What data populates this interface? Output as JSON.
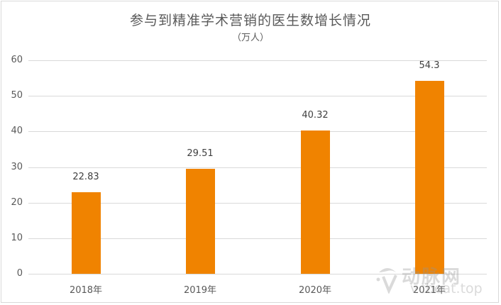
{
  "chart_data": {
    "type": "bar",
    "title": "参与到精准学术营销的医生数增长情况",
    "subtitle": "（万人）",
    "categories": [
      "2018年",
      "2019年",
      "2020年",
      "2021年"
    ],
    "values": [
      22.83,
      29.51,
      40.32,
      54.3
    ],
    "value_labels": [
      "22.83",
      "29.51",
      "40.32",
      "54.3"
    ],
    "xlabel": "",
    "ylabel": "万人",
    "ylim": [
      0,
      60
    ],
    "yticks": [
      "0",
      "10",
      "20",
      "30",
      "40",
      "50",
      "60"
    ],
    "grid": true,
    "legend": null,
    "bar_color": "#f08300"
  },
  "watermark": {
    "name": "动脉网",
    "url": "vcbeat.top"
  }
}
